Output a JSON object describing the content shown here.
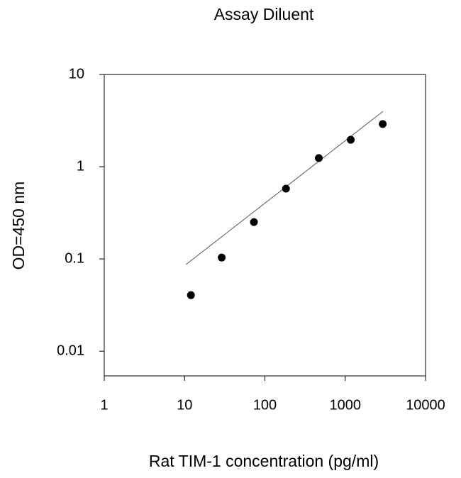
{
  "chart_data": {
    "type": "scatter",
    "title": "Assay Diluent",
    "xlabel": "Rat TIM-1 concentration (pg/ml)",
    "ylabel": "OD=450 nm",
    "x": [
      12,
      29,
      73,
      183,
      469,
      1172,
      2930
    ],
    "values": [
      0.0405,
      0.1035,
      0.251,
      0.578,
      1.24,
      1.96,
      2.9
    ],
    "color": "#000000",
    "fit_line": {
      "x": [
        10.4,
        2953
      ],
      "values": [
        0.087,
        3.98
      ],
      "color": "#555555"
    },
    "xlog": true,
    "ylog": true,
    "xlim": [
      1,
      10000
    ],
    "ylim": [
      0.0054,
      10
    ],
    "xticks": [
      1,
      10,
      100,
      1000,
      10000
    ],
    "yticks": [
      0.01,
      0.1,
      1,
      10
    ]
  }
}
